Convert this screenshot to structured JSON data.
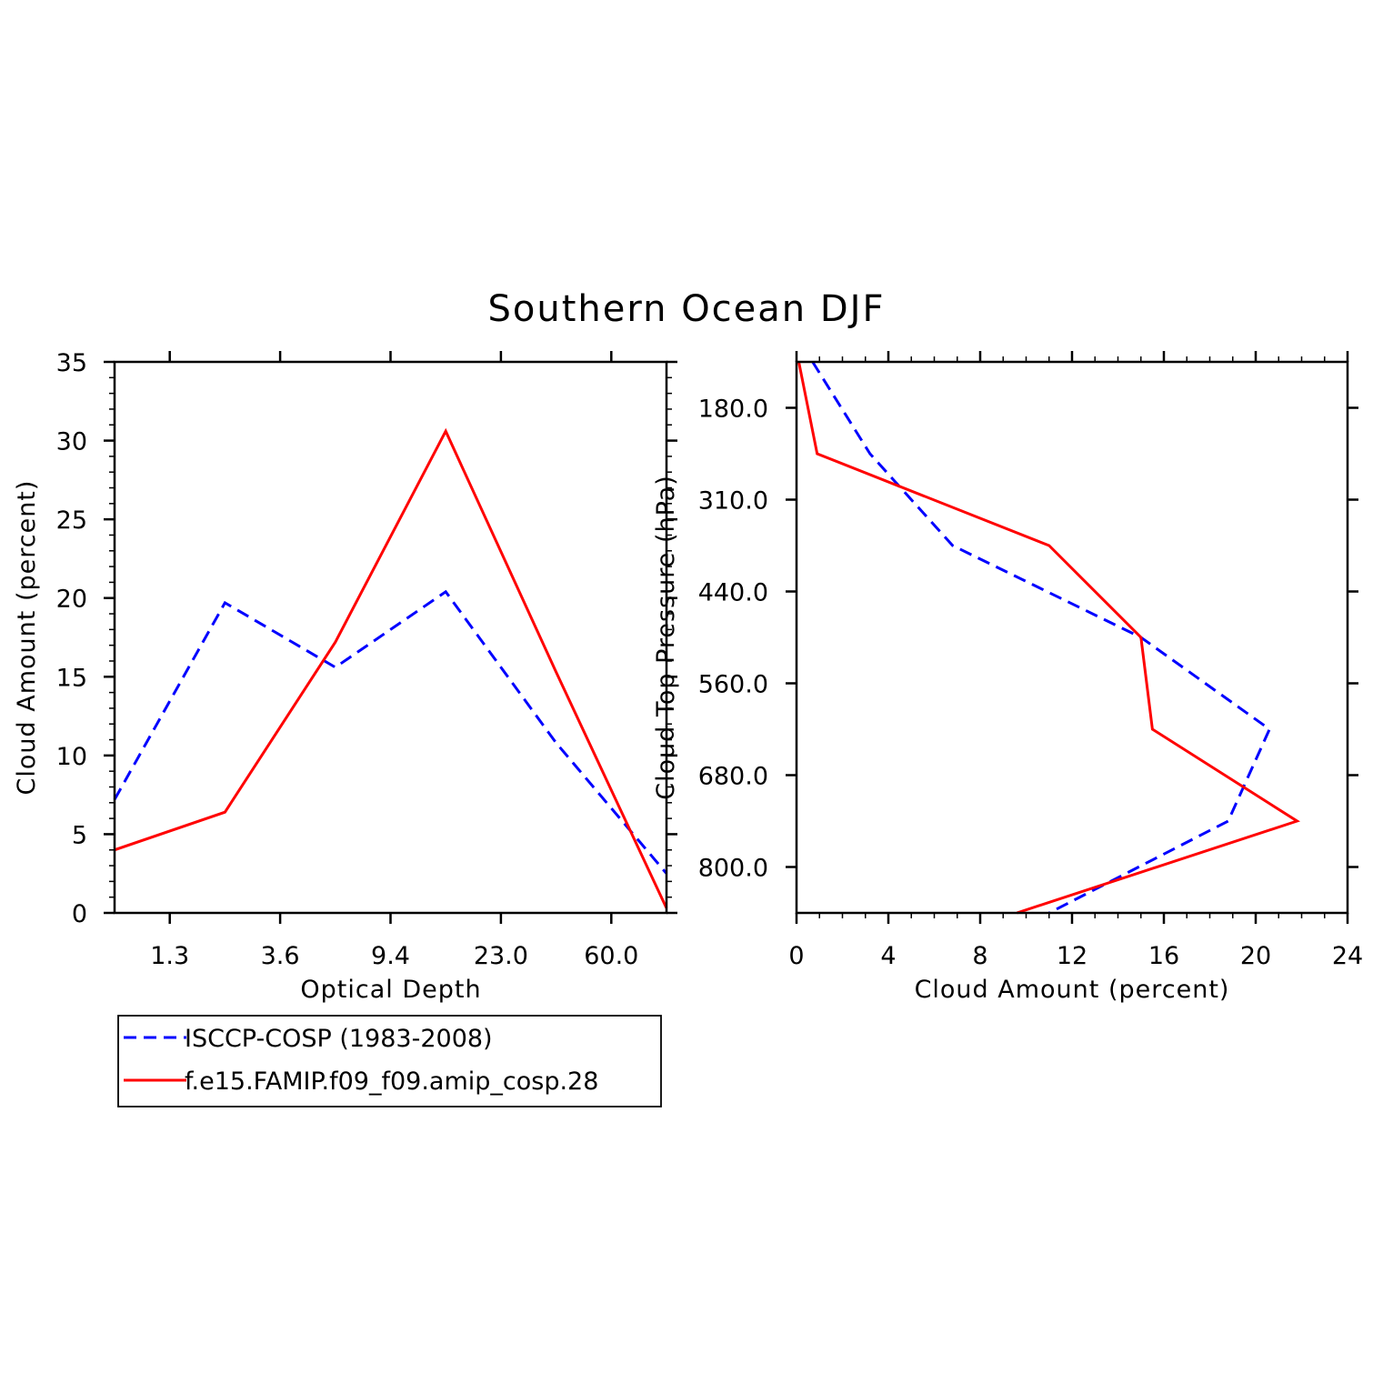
{
  "title": "Southern Ocean DJF",
  "colors": {
    "obs": "#0000ff",
    "model": "#ff0000",
    "axis": "#000000"
  },
  "legend": {
    "items": [
      {
        "label": "ISCCP-COSP (1983-2008)",
        "color": "#0000ff",
        "dash": "dashed"
      },
      {
        "label": "f.e15.FAMIP.f09_f09.amip_cosp.28",
        "color": "#ff0000",
        "dash": "solid"
      }
    ]
  },
  "chart_data": [
    {
      "type": "line",
      "xlabel": "Optical Depth",
      "ylabel": "Cloud Amount (percent)",
      "xlim": [
        0,
        5
      ],
      "ylim": [
        0,
        35
      ],
      "xticks": [
        0.5,
        1.5,
        2.5,
        3.5,
        4.5
      ],
      "xticklabels": [
        "1.3",
        "3.6",
        "9.4",
        "23.0",
        "60.0"
      ],
      "yticks": [
        0,
        5,
        10,
        15,
        20,
        25,
        30,
        35
      ],
      "yticklabels": [
        "0",
        "5",
        "10",
        "15",
        "20",
        "25",
        "30",
        "35"
      ],
      "series": [
        {
          "name": "ISCCP-COSP (1983-2008)",
          "x": [
            0,
            1,
            2,
            3,
            4,
            5
          ],
          "values": [
            7.2,
            19.7,
            15.6,
            20.4,
            10.8,
            2.5
          ]
        },
        {
          "name": "f.e15.FAMIP.f09_f09.amip_cosp.28",
          "x": [
            0,
            1,
            2,
            3,
            4,
            5
          ],
          "values": [
            4.0,
            6.4,
            17.2,
            30.6,
            15.3,
            0.3
          ]
        }
      ]
    },
    {
      "type": "line",
      "xlabel": "Cloud Amount (percent)",
      "ylabel": "Cloud Top Pressure (hPa)",
      "xlim": [
        0,
        24
      ],
      "ylim": [
        0,
        6
      ],
      "xticks": [
        0,
        4,
        8,
        12,
        16,
        20,
        24
      ],
      "xticklabels": [
        "0",
        "4",
        "8",
        "12",
        "16",
        "20",
        "24"
      ],
      "yticks": [
        0.5,
        1.5,
        2.5,
        3.5,
        4.5,
        5.5
      ],
      "yticklabels": [
        "180.0",
        "310.0",
        "440.0",
        "560.0",
        "680.0",
        "800.0"
      ],
      "series": [
        {
          "name": "ISCCP-COSP (1983-2008)",
          "x": [
            0.7,
            3.2,
            6.8,
            15.0,
            20.6,
            18.8,
            11.0
          ],
          "levels": [
            0,
            1,
            2,
            3,
            4,
            5,
            6
          ]
        },
        {
          "name": "f.e15.FAMIP.f09_f09.amip_cosp.28",
          "x": [
            0.1,
            0.9,
            11.0,
            15.0,
            15.5,
            21.8,
            9.6
          ],
          "levels": [
            0,
            1,
            2,
            3,
            4,
            5,
            6
          ]
        }
      ]
    }
  ]
}
